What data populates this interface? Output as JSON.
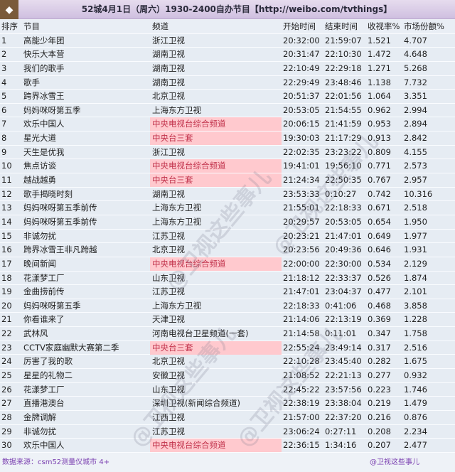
{
  "title": "52城4月1日（周六）1930-2400自办节目【http://weibo.com/tvthings】",
  "logo_icon": "diamond-logo-icon",
  "highlight_color": "#ffc9ce",
  "headers": [
    "排序",
    "节目",
    "频道",
    "开始时间",
    "结束时间",
    "收视率%",
    "市场份额%"
  ],
  "rows": [
    [
      "1",
      "高能少年团",
      "浙江卫视",
      "20:32:00",
      "21:59:07",
      "1.521",
      "4.707",
      false
    ],
    [
      "2",
      "快乐大本营",
      "湖南卫视",
      "20:31:47",
      "22:10:30",
      "1.472",
      "4.648",
      false
    ],
    [
      "3",
      "我们的歌手",
      "湖南卫视",
      "22:10:49",
      "22:29:18",
      "1.271",
      "5.268",
      false
    ],
    [
      "4",
      "歌手",
      "湖南卫视",
      "22:29:49",
      "23:48:46",
      "1.138",
      "7.732",
      false
    ],
    [
      "5",
      "跨界冰雪王",
      "北京卫视",
      "20:51:37",
      "22:01:56",
      "1.064",
      "3.351",
      false
    ],
    [
      "6",
      "妈妈咪呀第五季",
      "上海东方卫视",
      "20:53:05",
      "21:54:55",
      "0.962",
      "2.994",
      false
    ],
    [
      "7",
      "欢乐中国人",
      "中央电视台综合频道",
      "20:06:15",
      "21:41:59",
      "0.953",
      "2.894",
      true
    ],
    [
      "8",
      "星光大道",
      "中央台三套",
      "19:30:03",
      "21:17:29",
      "0.913",
      "2.842",
      true
    ],
    [
      "9",
      "天生是优我",
      "浙江卫视",
      "22:02:35",
      "23:23:22",
      "0.809",
      "4.155",
      false
    ],
    [
      "10",
      "焦点访谈",
      "中央电视台综合频道",
      "19:41:01",
      "19:56:10",
      "0.771",
      "2.573",
      true
    ],
    [
      "11",
      "越战越勇",
      "中央台三套",
      "21:24:34",
      "22:50:35",
      "0.767",
      "2.957",
      true
    ],
    [
      "12",
      "歌手揭晓时刻",
      "湖南卫视",
      "23:53:33",
      "0:10:27",
      "0.742",
      "10.316",
      false
    ],
    [
      "13",
      "妈妈咪呀第五季前传",
      "上海东方卫视",
      "21:55:01",
      "22:18:33",
      "0.671",
      "2.518",
      false
    ],
    [
      "14",
      "妈妈咪呀第五季前传",
      "上海东方卫视",
      "20:29:57",
      "20:53:05",
      "0.654",
      "1.950",
      false
    ],
    [
      "15",
      "非诚勿扰",
      "江苏卫视",
      "20:23:21",
      "21:47:01",
      "0.649",
      "1.977",
      false
    ],
    [
      "16",
      "跨界冰雪王非凡跨越",
      "北京卫视",
      "20:23:56",
      "20:49:36",
      "0.646",
      "1.931",
      false
    ],
    [
      "17",
      "晚间新闻",
      "中央电视台综合频道",
      "22:00:00",
      "22:30:00",
      "0.534",
      "2.129",
      true
    ],
    [
      "18",
      "花漾梦工厂",
      "山东卫视",
      "21:18:12",
      "22:33:37",
      "0.526",
      "1.874",
      false
    ],
    [
      "19",
      "金曲捞前传",
      "江苏卫视",
      "21:47:01",
      "23:04:37",
      "0.477",
      "2.101",
      false
    ],
    [
      "20",
      "妈妈咪呀第五季",
      "上海东方卫视",
      "22:18:33",
      "0:41:06",
      "0.468",
      "3.858",
      false
    ],
    [
      "21",
      "你看谁来了",
      "天津卫视",
      "21:14:06",
      "22:13:19",
      "0.369",
      "1.228",
      false
    ],
    [
      "22",
      "武林风",
      "河南电视台卫星频道(一套)",
      "21:14:58",
      "0:11:01",
      "0.347",
      "1.758",
      false
    ],
    [
      "23",
      "CCTV家庭幽默大赛第二季",
      "中央台三套",
      "22:55:24",
      "23:49:14",
      "0.317",
      "2.516",
      true
    ],
    [
      "24",
      "厉害了我的歌",
      "北京卫视",
      "22:10:28",
      "23:45:40",
      "0.282",
      "1.675",
      false
    ],
    [
      "25",
      "星星的礼物二",
      "安徽卫视",
      "21:08:52",
      "22:21:13",
      "0.277",
      "0.932",
      false
    ],
    [
      "26",
      "花漾梦工厂",
      "山东卫视",
      "22:45:22",
      "23:57:56",
      "0.223",
      "1.746",
      false
    ],
    [
      "27",
      "直播港澳台",
      "深圳卫视(新闻综合频道)",
      "22:38:19",
      "23:38:04",
      "0.219",
      "1.479",
      false
    ],
    [
      "28",
      "金牌调解",
      "江西卫视",
      "21:57:00",
      "22:37:20",
      "0.216",
      "0.876",
      false
    ],
    [
      "29",
      "非诚勿扰",
      "江苏卫视",
      "23:06:24",
      "0:27:11",
      "0.208",
      "2.234",
      false
    ],
    [
      "30",
      "欢乐中国人",
      "中央电视台综合频道",
      "22:36:15",
      "1:34:16",
      "0.207",
      "2.477",
      true
    ]
  ],
  "footer": {
    "source": "数据来源：csm52测量仪城市 4+",
    "credit": "@卫视这些事儿"
  },
  "watermark": "@卫视这些事儿"
}
